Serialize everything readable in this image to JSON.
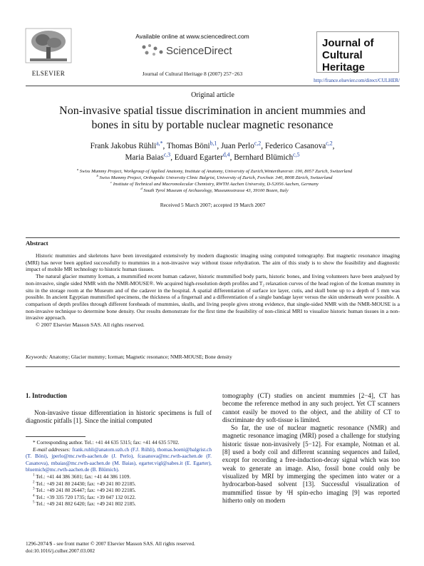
{
  "header": {
    "publisher": "ELSEVIER",
    "available_online": "Available online at www.sciencedirect.com",
    "sciencedirect": "ScienceDirect",
    "citation": "Journal of Cultural Heritage 8 (2007) 257−263",
    "journal_logo": "Journal of Cultural Heritage",
    "url": "http://france.elsevier.com/direct/CULHER/"
  },
  "article_type": "Original article",
  "title": "Non-invasive spatial tissue discrimination in ancient mummies and bones in situ by portable nuclear magnetic resonance",
  "authors": [
    {
      "name": "Frank Jakobus Rühli",
      "sup": "a,*",
      "sep": ","
    },
    {
      "name": "Thomas Böni",
      "sup": "b,1",
      "sep": ","
    },
    {
      "name": "Juan Perlo",
      "sup": "c,2",
      "sep": ","
    },
    {
      "name": "Federico Casanova",
      "sup": "c,2",
      "sep": ","
    },
    {
      "name": "Maria Baias",
      "sup": "c,3",
      "sep": ","
    },
    {
      "name": "Eduard Egarter",
      "sup": "d,4",
      "sep": ","
    },
    {
      "name": "Bernhard Blümich",
      "sup": "c,5"
    }
  ],
  "affiliations": [
    {
      "sup": "a",
      "text": "Swiss Mummy Project, Workgroup of Applied Anatomy, Institute of Anatomy, University of Zurich,Winterthurerstr. 190, 8057 Zurich, Switzerland"
    },
    {
      "sup": "b",
      "text": "Swiss Mummy Project, Orthopedic University Clinic Balgrist, University of Zurich, Forchstr. 340, 8008 Zürich, Switzerland"
    },
    {
      "sup": "c",
      "text": "Institute of Technical and Macromolecular Chemistry, RWTH Aachen University, D-52056 Aachen, Germany"
    },
    {
      "sup": "d",
      "text": "South Tyrol Museum of Archaeology, Museumsstrasse 43, 39100 Bozen, Italy"
    }
  ],
  "received": "Received 5 March 2007; accepted 19 March 2007",
  "abstract": {
    "heading": "Abstract",
    "paragraphs": [
      "Historic mummies and skeletons have been investigated extensively by modern diagnostic imaging using computed tomography. But magnetic resonance imaging (MRI) has never been applied successfully to mummies in a non-invasive way without tissue rehydration. The aim of this study is to show the feasibility and diagnostic impact of mobile MR technology to historic human tissues.",
      "The natural glacier mummy Iceman, a mummified recent human cadaver, historic mummified body parts, historic bones, and living volunteers have been analysed by non-invasive, single sided NMR with the NMR-MOUSE®. We acquired high-resolution depth profiles and T₂ relaxation curves of the head region of the Iceman mummy in situ in the storage room at the Museum and of the cadaver in the hospital. A spatial differentiation of surface ice layer, cutis, and skull bone up to a depth of 5 mm was possible. In ancient Egyptian mummified specimens, the thickness of a fingernail and a differentiation of a single bandage layer versus the skin underneath were possible. A comparison of depth profiles through different foreheads of mummies, skulls, and living people gives strong evidence, that single-sided NMR with the NMR-MOUSE is a non-invasive technique to determine bone density. Our results demonstrate for the first time the feasibility of non-clinical MRI to visualize historic human tissues in a non-invasive approach.",
      "© 2007 Elsevier Masson SAS. All rights reserved."
    ]
  },
  "keywords": {
    "label": "Keywords:",
    "text": "Anatomy; Glacier mummy; Iceman; Magnetic resonance; NMR-MOUSE; Bone density"
  },
  "intro": {
    "heading": "1. Introduction",
    "left": "Non-invasive tissue differentiation in historic specimens is full of diagnostic pitfalls [1]. Since the initial computed",
    "right": [
      "tomography (CT) studies on ancient mummies [2−4], CT has become the reference method in any such project. Yet CT scanners cannot easily be moved to the object, and the ability of CT to discriminate dry soft-tissue is limited.",
      "So far, the use of nuclear magnetic resonance (NMR) and magnetic resonance imaging (MRI) posed a challenge for studying historic tissue non-invasively [5−12]. For example, Notman et al. [8] used a body coil and different scanning sequences and failed, except for recording a free-induction-decay signal which was too weak to generate an image. Also, fossil bone could only be visualized by MRI by immerging the specimen into water or a hydrocarbon-based solvent [13]. Successful visualization of mummified tissue by ¹H spin-echo imaging [9] was reported hitherto only on modern"
    ]
  },
  "footnotes": {
    "corresponding": "* Corresponding author. Tel.: +41 44 635 5315; fax: +41 44 635 5702.",
    "emails_label": "E-mail addresses:",
    "emails": "frank.ruhli@anatom.uzh.ch (F.J. Rühli), thomas.boeni@balgrist.ch (T. Böni), jperlo@mc.rwth-aachen.de (J. Perlo), fcasanova@mc.rwth-aachen.de (F. Casanova), mbaias@mc.rwth-aachen.de (M. Baias), egarter.vigl@sabes.it (E. Egarter), bluemich@mc.rwth-aachen.de (B. Blümich).",
    "phones": [
      {
        "num": "1",
        "text": "Tel.: +41 44 386 3601; fax: +41 44 386 1109."
      },
      {
        "num": "2",
        "text": "Tel.: +49 241 80 24430; fax: +49 241 80 22185."
      },
      {
        "num": "3",
        "text": "Tel.: +49 241 80 26447; fax: +49 241 80 22185."
      },
      {
        "num": "4",
        "text": "Tel.: +39 335 720 1735; fax: +39 047 132 0122."
      },
      {
        "num": "5",
        "text": "Tel.: +49 241 802 6420; fax: +49 241 802 2185."
      }
    ]
  },
  "footer": {
    "issn": "1296-2074/$ - see front matter © 2007 Elsevier Masson SAS. All rights reserved.",
    "doi": "doi:10.1016/j.culher.2007.03.002"
  }
}
